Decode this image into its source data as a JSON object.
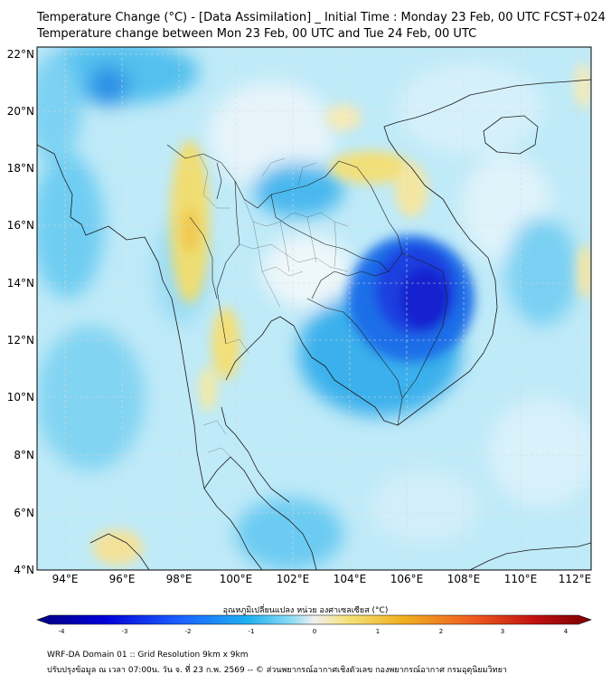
{
  "header": {
    "title_line1": "Temperature Change (°C) - [Data Assimilation] _ Initial Time : Monday 23 Feb, 00 UTC FCST+024",
    "title_line2": "Temperature change between Mon 23 Feb, 00 UTC and Tue 24 Feb, 00 UTC"
  },
  "map": {
    "lat_labels": [
      "22°N",
      "20°N",
      "18°N",
      "16°N",
      "14°N",
      "12°N",
      "10°N",
      "8°N",
      "6°N",
      "4°N"
    ],
    "lon_labels": [
      "94°E",
      "96°E",
      "98°E",
      "100°E",
      "102°E",
      "104°E",
      "106°E",
      "108°E",
      "110°E",
      "112°E"
    ],
    "field_description_colors": {
      "background": "#bfeaf8",
      "cooling_strong": "#1f2fd6",
      "cooling_moderate": "#32aee8",
      "neutral": "#ececec",
      "warming": "#f2dc6a"
    }
  },
  "colorbar": {
    "title": "อุณหภูมิเปลี่ยนแปลง หน่วย องศาเซลเซียส (°C)",
    "ticks": [
      "-4",
      "-3",
      "-2",
      "-1",
      "0",
      "1",
      "2",
      "3",
      "4"
    ],
    "colors": [
      "#000080",
      "#0000d8",
      "#1a5cff",
      "#1fb0f0",
      "#8fdcf5",
      "#f0f0f0",
      "#f5e27a",
      "#f0b020",
      "#f06020",
      "#c01010",
      "#7a0000"
    ]
  },
  "footer": {
    "line1": "WRF-DA Domain 01 :: Grid Resolution 9km x 9km",
    "line2": "ปรับปรุงข้อมูล ณ เวลา 07:00น. วัน จ. ที่ 23 ก.พ. 2569 -- © ส่วนพยากรณ์อากาศเชิงตัวเลข กองพยากรณ์อากาศ กรมอุตุนิยมวิทยา"
  }
}
